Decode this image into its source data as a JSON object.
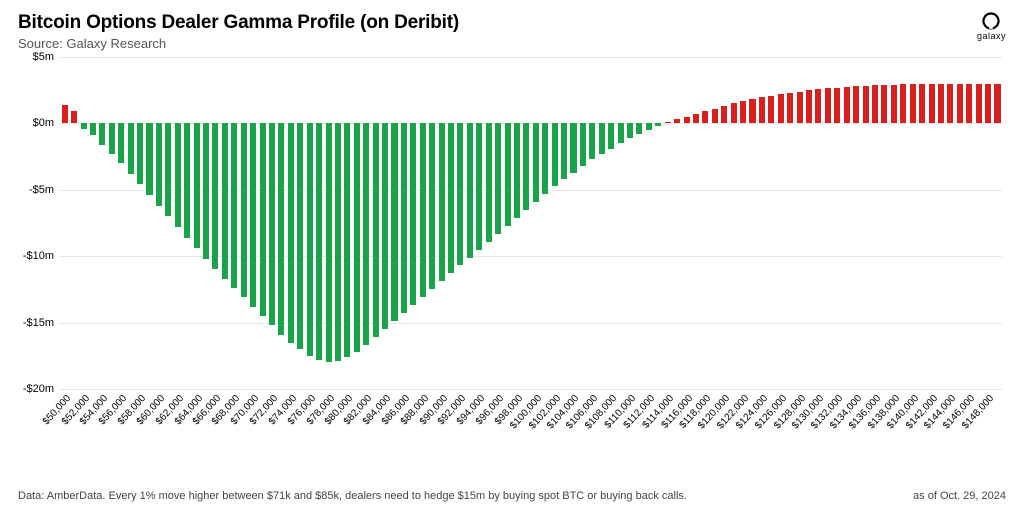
{
  "header": {
    "title": "Bitcoin Options Dealer Gamma Profile (on Deribit)",
    "subtitle": "Source: Galaxy Research",
    "logo_text": "galaxy"
  },
  "footer": {
    "note": "Data: AmberData. Every 1% move higher between $71k and $85k, dealers need to hedge $15m by buying spot BTC or buying back calls.",
    "date": "as of Oct. 29, 2024"
  },
  "chart": {
    "type": "bar",
    "ylim": [
      -20,
      5
    ],
    "yticks": [
      -20,
      -15,
      -10,
      -5,
      0,
      5
    ],
    "ytick_labels": [
      "-$20m",
      "-$15m",
      "-$10m",
      "-$5m",
      "$0m",
      "$5m"
    ],
    "grid_color": "#e6e6e6",
    "background_color": "#ffffff",
    "colors": {
      "positive": "#d8201e",
      "negative": "#1aa44a"
    },
    "bar_width": 0.64,
    "title_fontsize": 19,
    "subtitle_fontsize": 13,
    "axis_label_fontsize": 11,
    "x_tick_step": 2000,
    "x_tick_start": 50000,
    "x_tick_format_prefix": "$",
    "categories": [
      50000,
      51000,
      52000,
      53000,
      54000,
      55000,
      56000,
      57000,
      58000,
      59000,
      60000,
      61000,
      62000,
      63000,
      64000,
      65000,
      66000,
      67000,
      68000,
      69000,
      70000,
      71000,
      72000,
      73000,
      74000,
      75000,
      76000,
      77000,
      78000,
      79000,
      80000,
      81000,
      82000,
      83000,
      84000,
      85000,
      86000,
      87000,
      88000,
      89000,
      90000,
      91000,
      92000,
      93000,
      94000,
      95000,
      96000,
      97000,
      98000,
      99000,
      100000,
      101000,
      102000,
      103000,
      104000,
      105000,
      106000,
      107000,
      108000,
      109000,
      110000,
      111000,
      112000,
      113000,
      114000,
      115000,
      116000,
      117000,
      118000,
      119000,
      120000,
      121000,
      122000,
      123000,
      124000,
      125000,
      126000,
      127000,
      128000,
      129000,
      130000,
      131000,
      132000,
      133000,
      134000,
      135000,
      136000,
      137000,
      138000,
      139000,
      140000,
      141000,
      142000,
      143000,
      144000,
      145000,
      146000,
      147000,
      148000,
      149000
    ],
    "values": [
      1.4,
      0.9,
      -0.4,
      -0.9,
      -1.6,
      -2.3,
      -3.0,
      -3.8,
      -4.6,
      -5.4,
      -6.2,
      -7.0,
      -7.8,
      -8.6,
      -9.4,
      -10.2,
      -11.0,
      -11.7,
      -12.4,
      -13.1,
      -13.8,
      -14.5,
      -15.2,
      -15.9,
      -16.5,
      -17.0,
      -17.5,
      -17.8,
      -18.0,
      -17.9,
      -17.6,
      -17.2,
      -16.7,
      -16.1,
      -15.5,
      -14.9,
      -14.3,
      -13.7,
      -13.1,
      -12.5,
      -11.9,
      -11.3,
      -10.7,
      -10.1,
      -9.5,
      -8.9,
      -8.3,
      -7.7,
      -7.1,
      -6.5,
      -5.9,
      -5.3,
      -4.7,
      -4.2,
      -3.7,
      -3.2,
      -2.7,
      -2.3,
      -1.9,
      -1.5,
      -1.1,
      -0.8,
      -0.5,
      -0.2,
      0.1,
      0.3,
      0.5,
      0.7,
      0.9,
      1.1,
      1.3,
      1.5,
      1.7,
      1.85,
      2.0,
      2.1,
      2.2,
      2.3,
      2.4,
      2.5,
      2.6,
      2.65,
      2.7,
      2.75,
      2.8,
      2.83,
      2.86,
      2.89,
      2.92,
      2.94,
      2.96,
      2.97,
      2.98,
      2.99,
      3.0,
      3.0,
      3.0,
      3.0,
      3.0,
      3.0
    ]
  }
}
